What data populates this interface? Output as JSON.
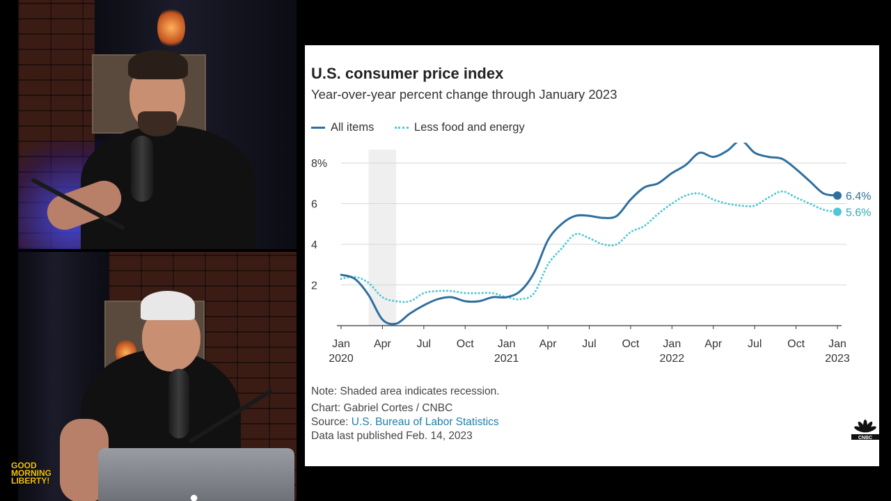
{
  "show_logo": {
    "line1": "GOOD",
    "line2": "MORNING",
    "line3": "LIBERTY!"
  },
  "colors": {
    "all_items": "#2e6f9e",
    "core": "#4ec7d9",
    "recession_shade": "#efefef"
  },
  "chart_data": {
    "type": "line",
    "title": "U.S. consumer price index",
    "subtitle": "Year-over-year percent change through January 2023",
    "x_tick_labels": [
      {
        "month": "Jan",
        "year": "2020",
        "t": 0
      },
      {
        "month": "Apr",
        "year": "",
        "t": 3
      },
      {
        "month": "Jul",
        "year": "",
        "t": 6
      },
      {
        "month": "Oct",
        "year": "",
        "t": 9
      },
      {
        "month": "Jan",
        "year": "2021",
        "t": 12
      },
      {
        "month": "Apr",
        "year": "",
        "t": 15
      },
      {
        "month": "Jul",
        "year": "",
        "t": 18
      },
      {
        "month": "Oct",
        "year": "",
        "t": 21
      },
      {
        "month": "Jan",
        "year": "2022",
        "t": 24
      },
      {
        "month": "Apr",
        "year": "",
        "t": 27
      },
      {
        "month": "Jul",
        "year": "",
        "t": 30
      },
      {
        "month": "Oct",
        "year": "",
        "t": 33
      },
      {
        "month": "Jan",
        "year": "2023",
        "t": 36
      }
    ],
    "y_ticks": [
      2,
      4,
      6,
      8
    ],
    "y_tick_labels": [
      "2",
      "4",
      "6",
      "8%"
    ],
    "ylim": [
      0,
      9
    ],
    "recession": {
      "start_t": 2,
      "end_t": 4
    },
    "series": [
      {
        "name": "All items",
        "style": "solid",
        "end_label": "6.4%",
        "values": [
          2.5,
          2.3,
          1.5,
          0.3,
          0.1,
          0.6,
          1.0,
          1.3,
          1.4,
          1.2,
          1.2,
          1.4,
          1.4,
          1.7,
          2.6,
          4.2,
          5.0,
          5.4,
          5.4,
          5.3,
          5.4,
          6.2,
          6.8,
          7.0,
          7.5,
          7.9,
          8.5,
          8.3,
          8.6,
          9.1,
          8.5,
          8.3,
          8.2,
          7.7,
          7.1,
          6.5,
          6.4
        ]
      },
      {
        "name": "Less food and energy",
        "style": "dotted",
        "end_label": "5.6%",
        "values": [
          2.3,
          2.4,
          2.1,
          1.4,
          1.2,
          1.2,
          1.6,
          1.7,
          1.7,
          1.6,
          1.6,
          1.6,
          1.4,
          1.3,
          1.6,
          3.0,
          3.8,
          4.5,
          4.3,
          4.0,
          4.0,
          4.6,
          4.9,
          5.5,
          6.0,
          6.4,
          6.5,
          6.2,
          6.0,
          5.9,
          5.9,
          6.3,
          6.6,
          6.3,
          6.0,
          5.7,
          5.6
        ]
      }
    ]
  },
  "notes": {
    "recession": "Note: Shaded area indicates recession.",
    "chart_credit": "Chart: Gabriel Cortes / CNBC",
    "source_prefix": "Source: ",
    "source_link": "U.S. Bureau of Labor Statistics",
    "published": "Data last published Feb. 14, 2023"
  },
  "brand_logo": "cnbc-peacock-icon"
}
